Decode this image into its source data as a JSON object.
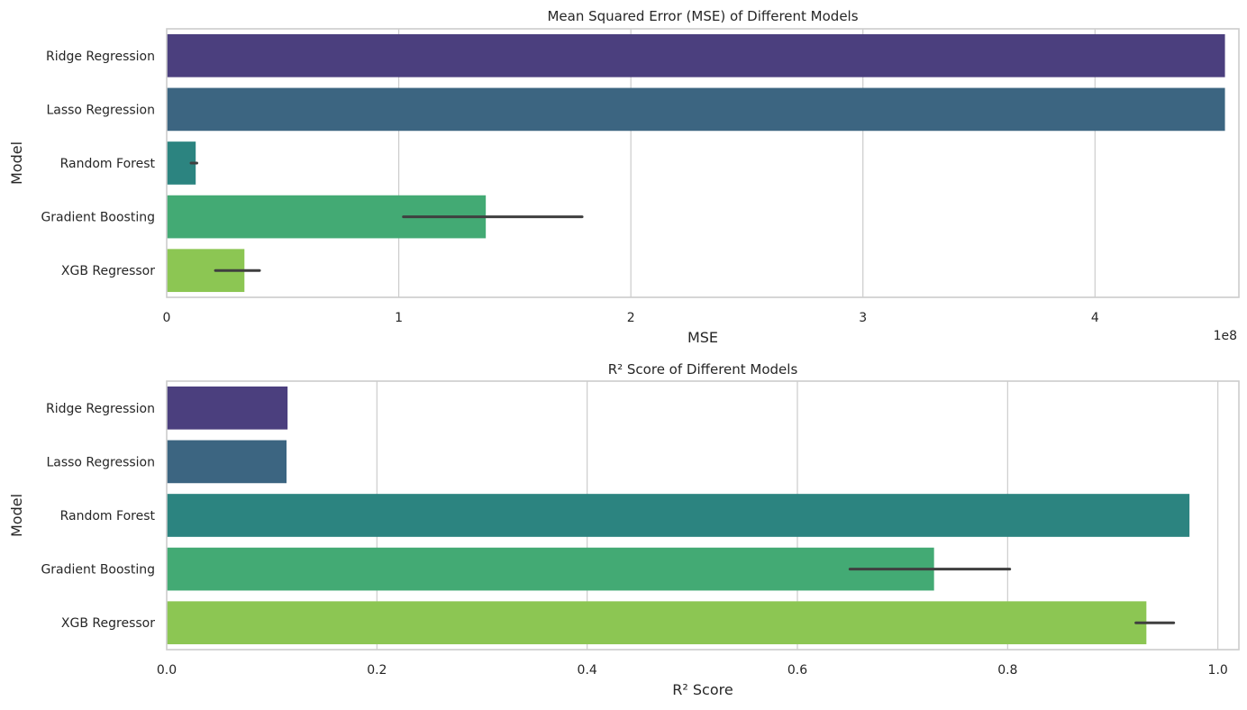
{
  "chart_data": [
    {
      "type": "bar",
      "orientation": "horizontal",
      "title": "Mean Squared Error (MSE) of Different Models",
      "xlabel": "MSE",
      "ylabel": "Model",
      "x_offset_label": "1e8",
      "xlim": [
        0,
        4.62
      ],
      "xticks": [
        0,
        1,
        2,
        3,
        4
      ],
      "xtick_labels": [
        "0",
        "1",
        "2",
        "3",
        "4"
      ],
      "grid": true,
      "categories": [
        "Ridge Regression",
        "Lasso Regression",
        "Random Forest",
        "Gradient Boosting",
        "XGB Regressor"
      ],
      "values": [
        4.56,
        4.56,
        0.125,
        1.375,
        0.335
      ],
      "error_bars": [
        null,
        null,
        [
          0.105,
          0.13
        ],
        [
          1.02,
          1.79
        ],
        [
          0.21,
          0.4
        ]
      ],
      "colors": [
        "#4b3f7e",
        "#3c6581",
        "#2c8480",
        "#43aa74",
        "#8cc653"
      ]
    },
    {
      "type": "bar",
      "orientation": "horizontal",
      "title": "R² Score of Different Models",
      "xlabel": "R² Score",
      "ylabel": "Model",
      "xlim": [
        0,
        1.02
      ],
      "xticks": [
        0,
        0.2,
        0.4,
        0.6,
        0.8,
        1.0
      ],
      "xtick_labels": [
        "0.0",
        "0.2",
        "0.4",
        "0.6",
        "0.8",
        "1.0"
      ],
      "grid": true,
      "categories": [
        "Ridge Regression",
        "Lasso Regression",
        "Random Forest",
        "Gradient Boosting",
        "XGB Regressor"
      ],
      "values": [
        0.115,
        0.114,
        0.973,
        0.73,
        0.932
      ],
      "error_bars": [
        null,
        null,
        null,
        [
          0.65,
          0.802
        ],
        [
          0.922,
          0.958
        ]
      ],
      "colors": [
        "#4b3f7e",
        "#3c6581",
        "#2c8480",
        "#43aa74",
        "#8cc653"
      ]
    }
  ]
}
